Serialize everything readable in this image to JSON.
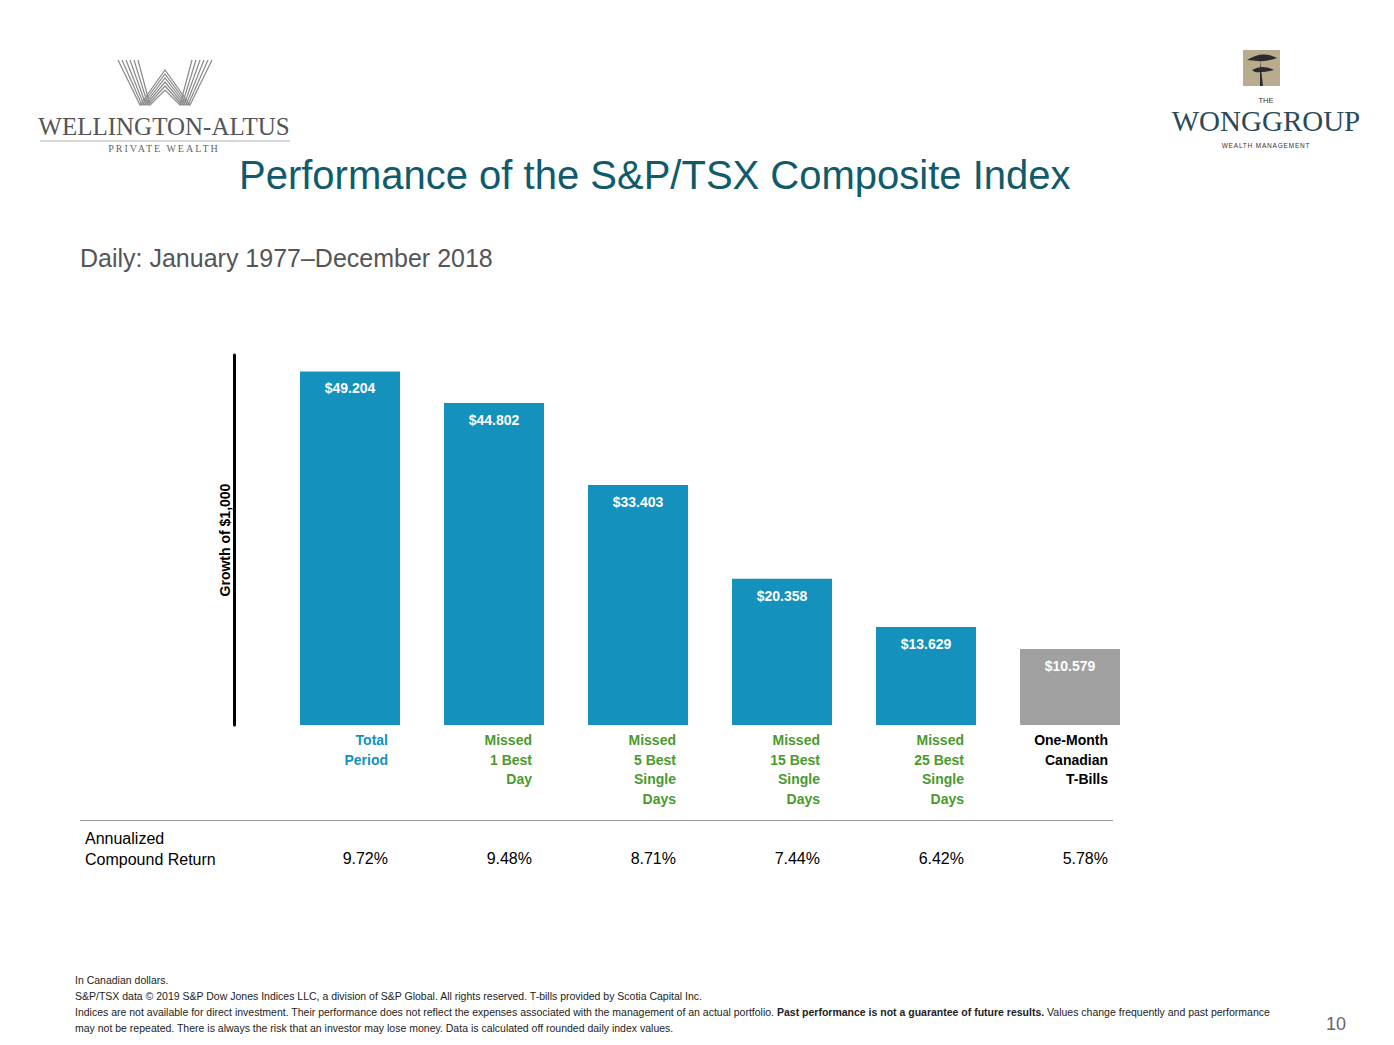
{
  "header": {
    "left_logo": {
      "name": "WELLINGTON-ALTUS",
      "tagline": "PRIVATE WEALTH"
    },
    "right_logo": {
      "prefix": "THE",
      "name": "WONGGROUP",
      "tagline": "WEALTH MANAGEMENT"
    }
  },
  "chart_data": {
    "type": "bar",
    "title": "Performance of the S&P/TSX Composite Index",
    "subtitle": "Daily: January 1977–December 2018",
    "y_label": "Growth of $1,000",
    "categories": [
      "Total\nPeriod",
      "Missed\n1 Best\nDay",
      "Missed\n5 Best\nSingle\nDays",
      "Missed\n15 Best\nSingle\nDays",
      "Missed\n25 Best\nSingle\nDays",
      "One-Month\nCanadian\nT-Bills"
    ],
    "values": [
      49.204,
      44.802,
      33.403,
      20.358,
      13.629,
      10.579
    ],
    "value_labels": [
      "$49.204",
      "$44.802",
      "$33.403",
      "$20.358",
      "$13.629",
      "$10.579"
    ],
    "colors": [
      "#1591bd",
      "#1591bd",
      "#1591bd",
      "#1591bd",
      "#1591bd",
      "#a0a0a0"
    ],
    "ylim": [
      0,
      51.5
    ],
    "grid": false,
    "data_labels": true,
    "tick_labels": "x"
  },
  "table": {
    "row_label": "Annualized Compound Return",
    "values": [
      "9.72%",
      "9.48%",
      "8.71%",
      "7.44%",
      "6.42%",
      "5.78%"
    ]
  },
  "footer": {
    "notes": [
      [
        {
          "text": "In Canadian dollars."
        }
      ],
      [
        {
          "text": "S&P/TSX data © 2019 S&P Dow Jones Indices LLC, a division of S&P Global. All rights reserved. T-bills provided by Scotia Capital Inc."
        }
      ],
      [
        {
          "text": "Indices are not available for direct investment. Their performance does not reflect the expenses associated with the management of an actual portfolio. "
        },
        {
          "text": "Past performance is not a guarantee of future results.",
          "bold": true
        },
        {
          "text": " Values change frequently and past performance may not be repeated. There is always the risk that an investor may lose money. Data is calculated off rounded daily index values."
        }
      ]
    ],
    "page_number": "10"
  }
}
